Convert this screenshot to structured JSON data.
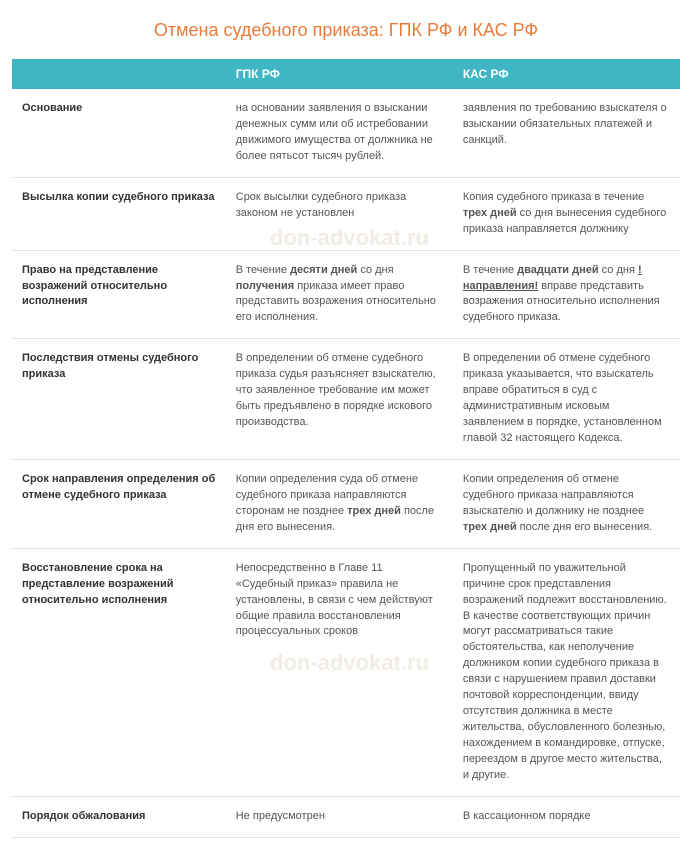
{
  "title": "Отмена судебного приказа: ГПК РФ и КАС РФ",
  "watermark": "don-advokat.ru",
  "header": {
    "blank": "",
    "col_a": "ГПК РФ",
    "col_b": "КАС РФ"
  },
  "rows": [
    {
      "label": "Основание",
      "a": "на основании заявления о взыскании денежных сумм или об истребовании движимого имущества от должника не более пятьсот тысяч рублей.",
      "b": "заявления по требованию взыскателя о взыскании обязательных платежей и санкций."
    },
    {
      "label": "Высылка копии судебного приказа",
      "a": "Срок высылки судебного приказа законом не установлен",
      "b_html": "Копия судебного приказа в течение <span class='b'>трех дней</span> со дня вынесения судебного приказа направляется должнику"
    },
    {
      "label": "Право на представление возражений относительно исполнения",
      "a_html": "В течение <span class='b'>десяти дней</span> со дня <span class='b'>получения</span> приказа имеет право представить возражения относительно его исполнения.",
      "b_html": "В течение <span class='b'>двадцати дней</span> со дня <span class='b u'>!направления!</span> вправе представить возражения относительно исполнения судебного приказа."
    },
    {
      "label": "Последствия отмены судебного приказа",
      "a": "В определении об отмене судебного приказа судья разъясняет взыскателю, что заявленное требование им может быть предъявлено в порядке искового производства.",
      "b": "В определении об отмене судебного приказа указывается, что взыскатель вправе обратиться в суд с административным исковым заявлением в порядке, установленном главой 32 настоящего Кодекса."
    },
    {
      "label": "Срок направления определения об отмене судебного приказа",
      "a_html": "Копии определения суда об отмене судебного приказа направляются сторонам не позднее <span class='b'>трех дней</span> после дня его вынесения.",
      "b_html": "Копии определения об отмене судебного приказа направляются взыскателю и должнику не позднее <span class='b'>трех дней</span> после дня его вынесения."
    },
    {
      "label": "Восстановление срока на представление возражений относительно исполнения",
      "a": "Непосредственно в Главе 11 «Судебный приказ» правила не установлены, в связи с чем действуют общие правила восстановления процессуальных сроков",
      "b": "Пропущенный по уважительной причине срок представления возражений подлежит восстановлению. В качестве соответствующих причин могут рассматриваться такие обстоятельства, как неполучение должником копии судебного приказа в связи с нарушением правил доставки почтовой корреспонденции, ввиду отсутствия должника в месте жительства, обусловленного болезнью, нахождением в командировке, отпуске, переездом в другое место жительства, и другие."
    },
    {
      "label": "Порядок обжалования",
      "a": "Не предусмотрен",
      "b": "В кассационном порядке"
    }
  ]
}
